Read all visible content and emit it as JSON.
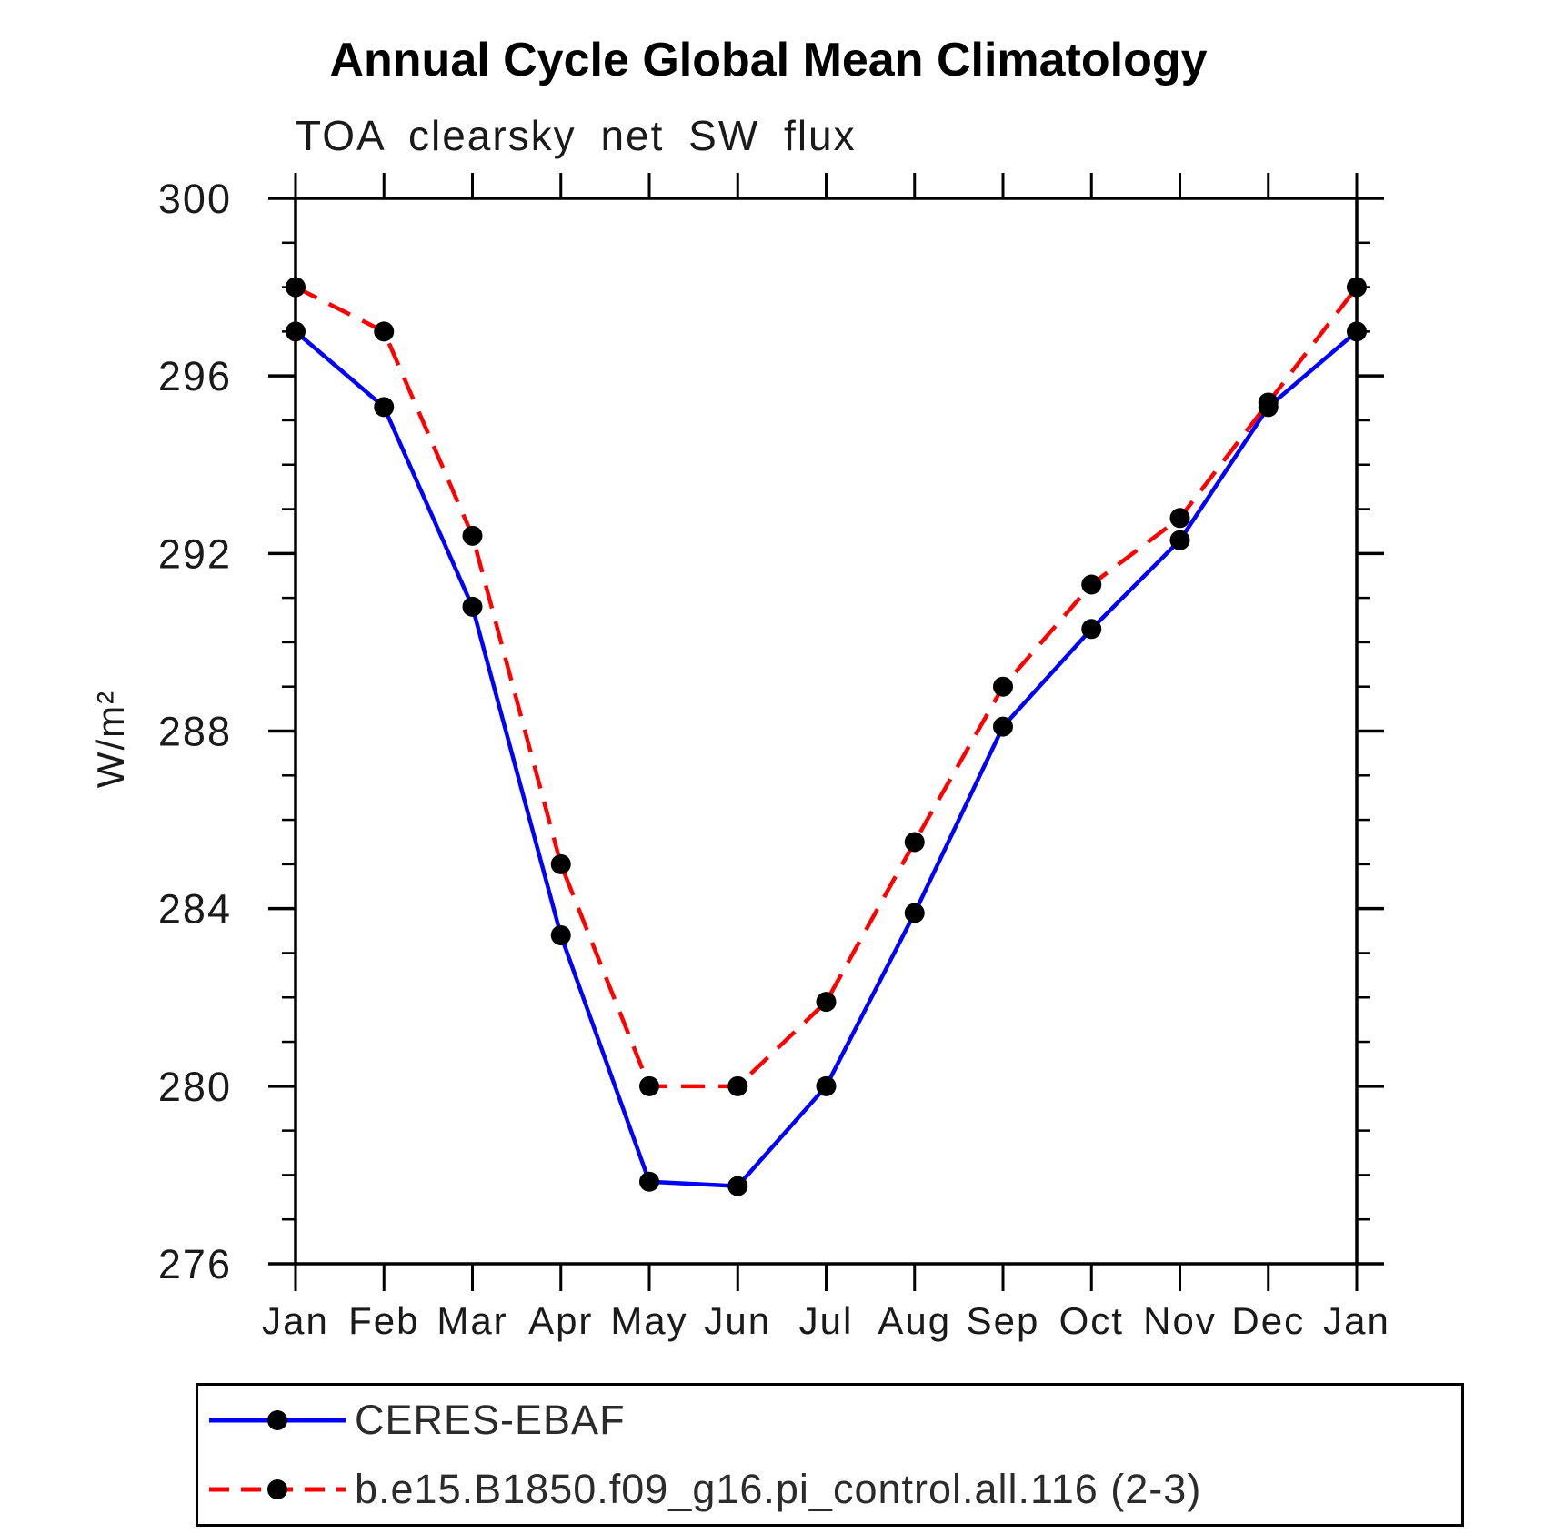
{
  "page": {
    "background": "#ffffff"
  },
  "header": {
    "title": "Annual Cycle Global Mean Climatology",
    "subtitle": "TOA clearsky net SW flux"
  },
  "chart_data": {
    "type": "line",
    "title": "Annual Cycle Global Mean Climatology",
    "subtitle": "TOA clearsky net SW flux",
    "xlabel": "",
    "ylabel": "W/m²",
    "categories": [
      "Jan",
      "Feb",
      "Mar",
      "Apr",
      "May",
      "Jun",
      "Jul",
      "Aug",
      "Sep",
      "Oct",
      "Nov",
      "Dec",
      "Jan"
    ],
    "ylim": [
      276,
      300
    ],
    "ytick_major": [
      276,
      280,
      284,
      288,
      292,
      296,
      300
    ],
    "ytick_minor_step": 1,
    "grid": false,
    "legend_position": "bottom",
    "frame_color": "#000000",
    "marker": "circle",
    "marker_color": "#000000",
    "series": [
      {
        "name": "CERES-EBAF",
        "color": "#0000ff",
        "style": "solid",
        "values": [
          297.0,
          295.3,
          290.8,
          283.4,
          277.85,
          277.75,
          280.0,
          283.9,
          288.1,
          290.3,
          292.3,
          295.3,
          297.0
        ]
      },
      {
        "name": "b.e15.B1850.f09_g16.pi_control.all.116 (2-3)",
        "color": "#ff0000",
        "style": "dashed",
        "values": [
          298.0,
          297.0,
          292.4,
          285.0,
          280.0,
          280.0,
          281.9,
          285.5,
          289.0,
          291.3,
          292.8,
          295.4,
          298.0
        ]
      }
    ]
  }
}
